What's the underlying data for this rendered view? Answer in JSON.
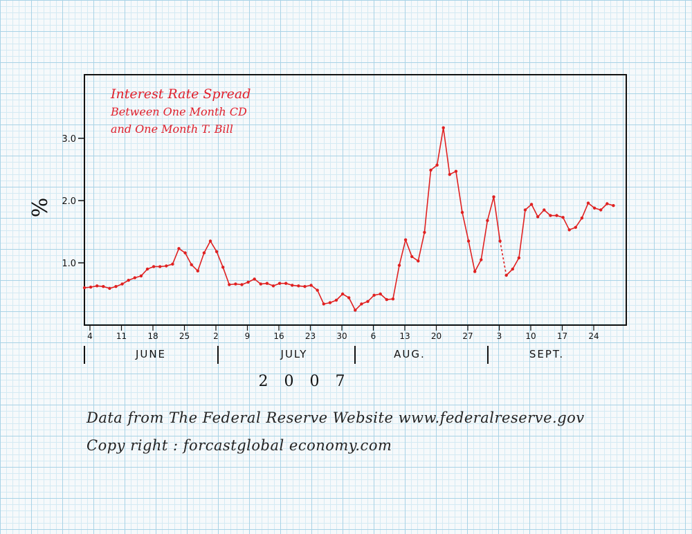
{
  "chart_data": {
    "type": "line",
    "title_lines": [
      "Interest Rate Spread",
      "Between One Month CD",
      "and One Month T. Bill"
    ],
    "ylabel": "%",
    "ylim": [
      0,
      4.0
    ],
    "yticks": [
      1.0,
      2.0,
      3.0
    ],
    "ytick_labels": [
      "1.0",
      "2.0",
      "3.0"
    ],
    "xlabel": "2 0 0 7",
    "x_tick_labels": [
      "4",
      "11",
      "18",
      "25",
      "2",
      "9",
      "16",
      "23",
      "30",
      "6",
      "13",
      "20",
      "27",
      "3",
      "10",
      "17",
      "24"
    ],
    "months": [
      "JUNE",
      "JULY",
      "AUG.",
      "SEPT."
    ],
    "grid": true,
    "series": [
      {
        "values": [
          0.6,
          0.61,
          0.63,
          0.62,
          0.59,
          0.62,
          0.66,
          0.72,
          0.76,
          0.79,
          0.9,
          0.94,
          0.94,
          0.95,
          0.98,
          1.23,
          1.16,
          0.97,
          0.87,
          1.16,
          1.35,
          1.18,
          0.93,
          0.65,
          0.66,
          0.65,
          0.69,
          0.74,
          0.66,
          0.67,
          0.63,
          0.67,
          0.67,
          0.64,
          0.63,
          0.62,
          0.64,
          0.56,
          0.34,
          0.36,
          0.4,
          0.5,
          0.44,
          0.24,
          0.34,
          0.38,
          0.48,
          0.5,
          0.41,
          0.42,
          0.96,
          1.37,
          1.1,
          1.03,
          1.49,
          2.49,
          2.57,
          3.17,
          2.42,
          2.47,
          1.81,
          1.35,
          0.86,
          1.05,
          1.68,
          2.06,
          1.35,
          0.8,
          0.9,
          1.08,
          1.85,
          1.94,
          1.74,
          1.85,
          1.76,
          1.76,
          1.73,
          1.53,
          1.57,
          1.72,
          1.96,
          1.88,
          1.85,
          1.95,
          1.92
        ],
        "dashed_segment_after_index": 66
      }
    ]
  },
  "footnotes": {
    "source": "Data from The Federal Reserve Website   www.federalreserve.gov",
    "copyright": "Copy right : forcastglobal economy.com"
  },
  "colors": {
    "line": "#e02020",
    "title": "#e0202c",
    "axis": "#111111"
  }
}
